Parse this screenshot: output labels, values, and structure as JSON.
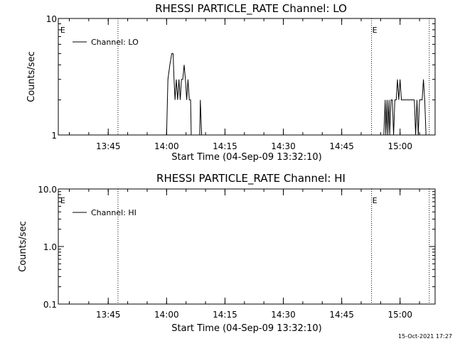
{
  "chart_data": [
    {
      "type": "line",
      "title": "RHESSI PARTICLE_RATE Channel: LO",
      "xlabel": "Start Time (04-Sep-09 13:32:10)",
      "ylabel": "Counts/sec",
      "yscale": "log",
      "xlim": [
        "13:32:10",
        "15:09:00"
      ],
      "ylim": [
        1,
        10
      ],
      "x_ticks": [
        "13:45",
        "14:00",
        "14:15",
        "14:30",
        "14:45",
        "15:00"
      ],
      "y_ticks": [
        "1",
        "10"
      ],
      "legend": {
        "placement": "top-left",
        "entries": [
          "Channel: LO"
        ]
      },
      "event_markers": [
        {
          "time": "13:32:30",
          "label": "E"
        },
        {
          "time": "14:52:40",
          "label": "E"
        }
      ],
      "vertical_lines": [
        "13:47:30",
        "14:52:40",
        "15:07:30"
      ],
      "series": [
        {
          "name": "Channel: LO",
          "segments": [
            [
              [
                "14:00:00",
                1
              ],
              [
                "14:00:20",
                3
              ],
              [
                "14:00:50",
                4
              ],
              [
                "14:01:20",
                5
              ],
              [
                "14:01:40",
                5
              ],
              [
                "14:01:55",
                3
              ],
              [
                "14:02:10",
                2
              ],
              [
                "14:02:30",
                3
              ],
              [
                "14:02:50",
                2
              ],
              [
                "14:03:10",
                3
              ],
              [
                "14:03:30",
                2
              ],
              [
                "14:03:50",
                3
              ],
              [
                "14:04:10",
                3
              ],
              [
                "14:04:30",
                4
              ],
              [
                "14:04:50",
                3
              ],
              [
                "14:05:10",
                2
              ],
              [
                "14:05:30",
                3
              ],
              [
                "14:05:50",
                2
              ],
              [
                "14:06:10",
                2
              ],
              [
                "14:06:20",
                1
              ]
            ],
            [
              [
                "14:08:30",
                1
              ],
              [
                "14:08:40",
                2
              ],
              [
                "14:09:00",
                1
              ]
            ],
            [
              [
                "14:55:50",
                1
              ],
              [
                "14:56:10",
                2
              ],
              [
                "14:56:20",
                1
              ],
              [
                "14:56:40",
                2
              ],
              [
                "14:56:50",
                1
              ],
              [
                "14:57:10",
                2
              ],
              [
                "14:57:20",
                1
              ],
              [
                "14:57:40",
                2
              ],
              [
                "14:58:00",
                2
              ],
              [
                "14:58:20",
                1
              ],
              [
                "14:58:40",
                2
              ],
              [
                "14:59:00",
                2
              ],
              [
                "14:59:20",
                3
              ],
              [
                "14:59:40",
                2
              ],
              [
                "15:00:00",
                3
              ],
              [
                "15:00:20",
                2
              ],
              [
                "15:00:40",
                2
              ],
              [
                "15:01:00",
                2
              ],
              [
                "15:01:20",
                2
              ],
              [
                "15:01:40",
                2
              ],
              [
                "15:02:00",
                2
              ],
              [
                "15:02:20",
                2
              ],
              [
                "15:02:40",
                2
              ],
              [
                "15:03:00",
                2
              ],
              [
                "15:03:20",
                2
              ],
              [
                "15:03:40",
                2
              ],
              [
                "15:04:00",
                1
              ],
              [
                "15:04:20",
                2
              ],
              [
                "15:04:40",
                1
              ],
              [
                "15:05:00",
                2
              ],
              [
                "15:05:20",
                2
              ],
              [
                "15:05:40",
                2
              ],
              [
                "15:06:00",
                3
              ],
              [
                "15:06:20",
                2
              ],
              [
                "15:06:40",
                1
              ]
            ]
          ]
        }
      ]
    },
    {
      "type": "line",
      "title": "RHESSI PARTICLE_RATE Channel: HI",
      "xlabel": "Start Time (04-Sep-09 13:32:10)",
      "ylabel": "Counts/sec",
      "yscale": "log",
      "xlim": [
        "13:32:10",
        "15:09:00"
      ],
      "ylim": [
        0.1,
        10
      ],
      "x_ticks": [
        "13:45",
        "14:00",
        "14:15",
        "14:30",
        "14:45",
        "15:00"
      ],
      "y_ticks": [
        "0.1",
        "1.0",
        "10.0"
      ],
      "legend": {
        "placement": "top-left",
        "entries": [
          "Channel: HI"
        ]
      },
      "event_markers": [
        {
          "time": "13:32:30",
          "label": "E"
        },
        {
          "time": "14:52:40",
          "label": "E"
        }
      ],
      "vertical_lines": [
        "13:47:30",
        "14:52:40",
        "15:07:30"
      ],
      "series": [
        {
          "name": "Channel: HI",
          "segments": []
        }
      ]
    }
  ],
  "footer": {
    "timestamp": "15-Oct-2021 17:27"
  }
}
